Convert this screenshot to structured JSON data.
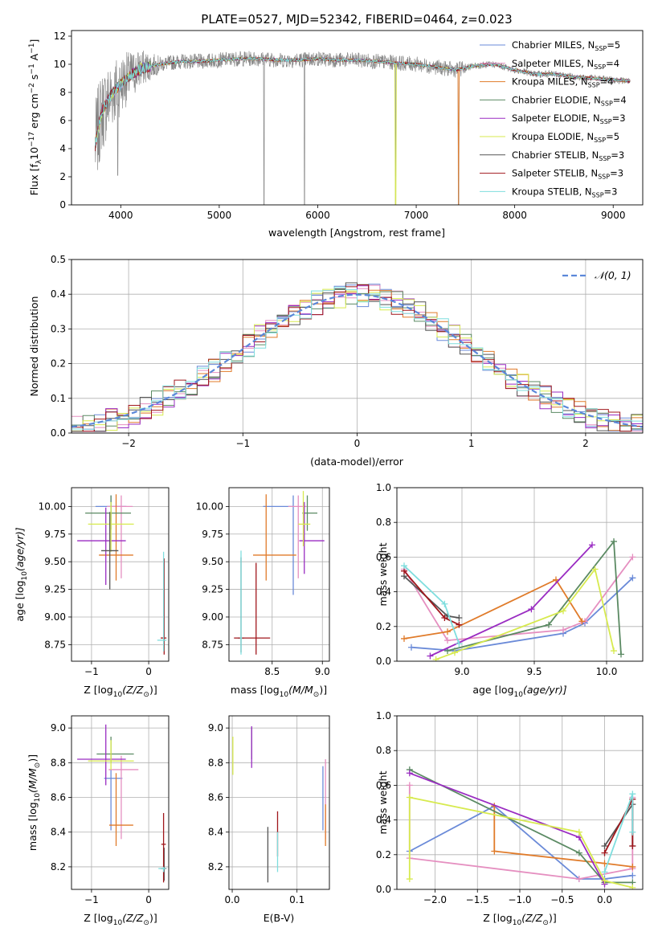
{
  "figure": {
    "title": "PLATE=0527, MJD=52342, FIBERID=0464, z=0.023"
  },
  "series": [
    {
      "name": "Chabrier MILES",
      "nssp": "5",
      "color": "#6a8ad8"
    },
    {
      "name": "Salpeter MILES",
      "nssp": "4",
      "color": "#e58fc0"
    },
    {
      "name": "Kroupa MILES",
      "nssp": "4",
      "color": "#e07b2a"
    },
    {
      "name": "Chabrier ELODIE",
      "nssp": "4",
      "color": "#5b8a63"
    },
    {
      "name": "Salpeter ELODIE",
      "nssp": "3",
      "color": "#9a2cc2"
    },
    {
      "name": "Kroupa ELODIE",
      "nssp": "5",
      "color": "#d7ea4f"
    },
    {
      "name": "Chabrier STELIB",
      "nssp": "3",
      "color": "#555555"
    },
    {
      "name": "Salpeter STELIB",
      "nssp": "3",
      "color": "#a0171c"
    },
    {
      "name": "Kroupa STELIB",
      "nssp": "3",
      "color": "#7fdede"
    }
  ],
  "chart_data": [
    {
      "id": "spectrum",
      "type": "line",
      "xlabel": "wavelength [Angstrom, rest frame]",
      "xlim": [
        3500,
        9300
      ],
      "ylim": [
        0,
        12.4
      ],
      "xticks": [
        4000,
        5000,
        6000,
        7000,
        8000,
        9000
      ],
      "yticks": [
        0,
        2,
        4,
        6,
        8,
        10,
        12
      ],
      "ylabel_parts": [
        "Flux [f",
        "λ",
        "10",
        "−17",
        " erg cm",
        "−2",
        " s",
        "−1",
        " A",
        "−1",
        "]"
      ],
      "legend_prefix": "N",
      "legend_sub": "SSP",
      "data_color": "#888888",
      "continuum": {
        "x": [
          3740,
          3800,
          3900,
          4000,
          4100,
          4200,
          4400,
          4600,
          4800,
          5000,
          5200,
          5400,
          5600,
          5800,
          6000,
          6200,
          6400,
          6600,
          6800,
          7000,
          7200,
          7400,
          7600,
          7800,
          8000,
          8200,
          8400,
          8600,
          8800,
          9000,
          9170
        ],
        "y": [
          4.2,
          6.5,
          7.8,
          8.6,
          9.2,
          9.7,
          10.0,
          10.2,
          10.2,
          10.3,
          10.4,
          10.4,
          10.3,
          10.3,
          10.4,
          10.3,
          10.3,
          10.2,
          10.1,
          10.0,
          9.8,
          9.6,
          9.9,
          10.0,
          9.6,
          9.3,
          9.3,
          9.1,
          9.0,
          8.9,
          8.8
        ]
      },
      "dips": [
        {
          "x": 3970,
          "y": 2.1
        },
        {
          "x": 5455,
          "y": 0.0
        },
        {
          "x": 5865,
          "y": 0.0
        },
        {
          "x": 6790,
          "y": 0.0
        },
        {
          "x": 7430,
          "y": 0.0
        }
      ]
    },
    {
      "id": "residuals",
      "type": "step",
      "xlabel": "(data-model)/error",
      "ylabel": "Normed distribution",
      "xlim": [
        -2.5,
        2.5
      ],
      "ylim": [
        0,
        0.5
      ],
      "xticks": [
        -2,
        -1,
        0,
        1,
        2
      ],
      "yticks": [
        0.0,
        0.1,
        0.2,
        0.3,
        0.4,
        0.5
      ],
      "bin_width": 0.1,
      "legend_label": "𝒩(0, 1)",
      "reference_color": "#5b87d9"
    },
    {
      "id": "z-age",
      "type": "errorbar",
      "xlabel_parts": [
        "Z [log",
        "10",
        "(Z/Z",
        "⊙",
        ")]"
      ],
      "ylabel_parts": [
        "age  [log",
        "10",
        "(age/yr)]"
      ],
      "xlim": [
        -1.35,
        0.35
      ],
      "ylim": [
        8.6,
        10.17
      ],
      "xticks": [
        -1,
        0
      ],
      "yticks": [
        8.75,
        9.0,
        9.25,
        9.5,
        9.75,
        10.0
      ],
      "points": [
        {
          "x": -0.66,
          "y": 10.0,
          "xerr": [
            0.27,
            0.27
          ],
          "yerr": [
            0.13,
            0.1
          ]
        },
        {
          "x": -0.48,
          "y": 10.0,
          "xerr": [
            0.25,
            0.2
          ],
          "yerr": [
            0.65,
            0.1
          ]
        },
        {
          "x": -0.57,
          "y": 9.56,
          "xerr": [
            0.3,
            0.3
          ],
          "yerr": [
            0.23,
            0.55
          ]
        },
        {
          "x": -0.66,
          "y": 9.94,
          "xerr": [
            0.45,
            0.35
          ],
          "yerr": [
            0.15,
            0.16
          ]
        },
        {
          "x": -0.75,
          "y": 9.69,
          "xerr": [
            0.5,
            0.35
          ],
          "yerr": [
            0.4,
            0.3
          ]
        },
        {
          "x": -0.66,
          "y": 9.84,
          "xerr": [
            0.4,
            0.4
          ],
          "yerr": [
            0.25,
            0.2
          ]
        },
        {
          "x": -0.68,
          "y": 9.6,
          "xerr": [
            0.15,
            0.15
          ],
          "yerr": [
            0.35,
            0.35
          ]
        },
        {
          "x": 0.27,
          "y": 8.81,
          "xerr": [
            0.06,
            0.04
          ],
          "yerr": [
            0.15,
            0.72
          ]
        },
        {
          "x": 0.26,
          "y": 8.79,
          "xerr": [
            0.11,
            0.05
          ],
          "yerr": [
            0.1,
            0.8
          ]
        }
      ]
    },
    {
      "id": "mass-age",
      "type": "errorbar",
      "xlabel_parts": [
        "mass [log",
        "10",
        "(M/M",
        "⊙",
        ")]"
      ],
      "ylabel_parts": [],
      "xlim": [
        8.07,
        9.07
      ],
      "ylim": [
        8.6,
        10.17
      ],
      "xticks": [
        8.5,
        9.0
      ],
      "yticks": [
        8.75,
        9.0,
        9.25,
        9.5,
        9.75,
        10.0
      ],
      "points": [
        {
          "x": 8.71,
          "y": 10.0,
          "xerr": [
            0.3,
            0.0
          ],
          "yerr": [
            0.8,
            0.1
          ]
        },
        {
          "x": 8.76,
          "y": 10.0,
          "xerr": [
            0.1,
            0.08
          ],
          "yerr": [
            0.65,
            0.1
          ]
        },
        {
          "x": 8.44,
          "y": 9.56,
          "xerr": [
            0.13,
            0.3
          ],
          "yerr": [
            0.23,
            0.55
          ]
        },
        {
          "x": 8.85,
          "y": 9.94,
          "xerr": [
            0.05,
            0.1
          ],
          "yerr": [
            0.16,
            0.16
          ]
        },
        {
          "x": 8.82,
          "y": 9.69,
          "xerr": [
            0.05,
            0.2
          ],
          "yerr": [
            0.3,
            0.35
          ]
        },
        {
          "x": 8.81,
          "y": 9.84,
          "xerr": [
            0.05,
            0.07
          ],
          "yerr": [
            0.2,
            0.3
          ]
        },
        {
          "x": 8.19,
          "y": 8.81,
          "xerr": [
            0.03,
            0.03
          ],
          "yerr": [
            0.13,
            0.73
          ]
        },
        {
          "x": 8.34,
          "y": 8.81,
          "xerr": [
            0.22,
            0.14
          ],
          "yerr": [
            0.15,
            0.68
          ]
        },
        {
          "x": 8.19,
          "y": 8.81,
          "xerr": [
            0.01,
            0.01
          ],
          "yerr": [
            0.15,
            0.79
          ]
        }
      ]
    },
    {
      "id": "age-weight",
      "type": "line",
      "xlabel_parts": [
        "age  [log",
        "10",
        "(age/yr)]"
      ],
      "ylabel": "mass weight",
      "xlim": [
        8.55,
        10.25
      ],
      "ylim": [
        0,
        1.0
      ],
      "xticks": [
        8.5,
        9.0,
        9.5,
        10.0
      ],
      "yticks": [
        0.0,
        0.2,
        0.4,
        0.6,
        0.8,
        1.0
      ],
      "series": [
        {
          "x": [
            8.65,
            8.95,
            9.7,
            9.85,
            10.18
          ],
          "y": [
            0.08,
            0.06,
            0.16,
            0.22,
            0.48
          ]
        },
        {
          "x": [
            8.6,
            8.9,
            9.7,
            9.85,
            10.18
          ],
          "y": [
            0.53,
            0.12,
            0.18,
            0.23,
            0.6
          ]
        },
        {
          "x": [
            8.6,
            8.9,
            9.65,
            9.83
          ],
          "y": [
            0.13,
            0.17,
            0.47,
            0.23
          ]
        },
        {
          "x": [
            8.9,
            9.6,
            10.05,
            10.1
          ],
          "y": [
            0.06,
            0.21,
            0.69,
            0.04
          ]
        },
        {
          "x": [
            8.78,
            9.48,
            9.9
          ],
          "y": [
            0.03,
            0.3,
            0.67
          ]
        },
        {
          "x": [
            8.82,
            8.95,
            9.7,
            9.92,
            10.05
          ],
          "y": [
            0.01,
            0.05,
            0.29,
            0.53,
            0.06
          ]
        },
        {
          "x": [
            8.6,
            8.9,
            8.98
          ],
          "y": [
            0.49,
            0.26,
            0.25
          ]
        },
        {
          "x": [
            8.6,
            8.88,
            8.98
          ],
          "y": [
            0.52,
            0.25,
            0.21
          ]
        },
        {
          "x": [
            8.6,
            8.88,
            8.98
          ],
          "y": [
            0.55,
            0.33,
            0.1
          ]
        }
      ]
    },
    {
      "id": "z-mass",
      "type": "errorbar",
      "xlabel_parts": [
        "Z [log",
        "10",
        "(Z/Z",
        "⊙",
        ")]"
      ],
      "ylabel_parts": [
        "mass [log",
        "10",
        "(M/M",
        "⊙",
        ")]"
      ],
      "xlim": [
        -1.35,
        0.35
      ],
      "ylim": [
        8.07,
        9.07
      ],
      "xticks": [
        -1,
        0
      ],
      "yticks": [
        8.2,
        8.4,
        8.6,
        8.8,
        9.0
      ],
      "points": [
        {
          "x": -0.66,
          "y": 8.71,
          "xerr": [
            0.12,
            0.2
          ],
          "yerr": [
            0.3,
            0.05
          ]
        },
        {
          "x": -0.48,
          "y": 8.76,
          "xerr": [
            0.22,
            0.3
          ],
          "yerr": [
            0.4,
            0.08
          ]
        },
        {
          "x": -0.57,
          "y": 8.44,
          "xerr": [
            0.12,
            0.3
          ],
          "yerr": [
            0.12,
            0.3
          ]
        },
        {
          "x": -0.66,
          "y": 8.85,
          "xerr": [
            0.25,
            0.4
          ],
          "yerr": [
            0.05,
            0.1
          ]
        },
        {
          "x": -0.75,
          "y": 8.82,
          "xerr": [
            0.5,
            0.35
          ],
          "yerr": [
            0.15,
            0.2
          ]
        },
        {
          "x": -0.66,
          "y": 8.81,
          "xerr": [
            0.4,
            0.4
          ],
          "yerr": [
            0.05,
            0.12
          ]
        },
        {
          "x": 0.27,
          "y": 8.19,
          "xerr": [
            0.06,
            0.04
          ],
          "yerr": [
            0.07,
            0.12
          ]
        },
        {
          "x": 0.26,
          "y": 8.33,
          "xerr": [
            0.04,
            0.04
          ],
          "yerr": [
            0.22,
            0.18
          ]
        },
        {
          "x": 0.26,
          "y": 8.19,
          "xerr": [
            0.09,
            0.04
          ],
          "yerr": [
            0.02,
            0.01
          ]
        }
      ]
    },
    {
      "id": "ebv-mass",
      "type": "errorbar",
      "xlabel": "E(B-V)",
      "xlim": [
        -0.005,
        0.15
      ],
      "ylim": [
        8.07,
        9.07
      ],
      "xticks": [
        0.0,
        0.1
      ],
      "yticks": [
        8.2,
        8.4,
        8.6,
        8.8,
        9.0
      ],
      "points": [
        {
          "x": 0.14,
          "y": 8.71,
          "xerr": [
            0.0,
            0.0
          ],
          "yerr": [
            0.3,
            0.07
          ]
        },
        {
          "x": 0.144,
          "y": 8.76,
          "xerr": [
            0.0,
            0.0
          ],
          "yerr": [
            0.4,
            0.06
          ]
        },
        {
          "x": 0.144,
          "y": 8.44,
          "xerr": [
            0.0,
            0.0
          ],
          "yerr": [
            0.12,
            0.12
          ]
        },
        {
          "x": 0.03,
          "y": 8.87,
          "xerr": [
            0.0,
            0.0
          ],
          "yerr": [
            0.05,
            0.13
          ]
        },
        {
          "x": 0.03,
          "y": 8.82,
          "xerr": [
            0.0,
            0.0
          ],
          "yerr": [
            0.05,
            0.19
          ]
        },
        {
          "x": 0.001,
          "y": 8.83,
          "xerr": [
            0.0,
            0.0
          ],
          "yerr": [
            0.1,
            0.12
          ]
        },
        {
          "x": 0.055,
          "y": 8.19,
          "xerr": [
            0.0,
            0.0
          ],
          "yerr": [
            0.08,
            0.24
          ]
        },
        {
          "x": 0.07,
          "y": 8.33,
          "xerr": [
            0.0,
            0.0
          ],
          "yerr": [
            0.07,
            0.19
          ]
        },
        {
          "x": 0.07,
          "y": 8.2,
          "xerr": [
            0.0,
            0.0
          ],
          "yerr": [
            0.03,
            0.2
          ]
        }
      ]
    },
    {
      "id": "z-weight",
      "type": "line",
      "xlabel_parts": [
        "Z [log",
        "10",
        "(Z/Z",
        "⊙",
        ")]"
      ],
      "ylabel": "mass weight",
      "xlim": [
        -2.45,
        0.45
      ],
      "ylim": [
        0,
        1.0
      ],
      "xticks": [
        -2.0,
        -1.5,
        -1.0,
        -0.5,
        0.0
      ],
      "yticks": [
        0.0,
        0.2,
        0.4,
        0.6,
        0.8,
        1.0
      ],
      "series": [
        {
          "x": [
            -2.3,
            -1.3,
            -0.3,
            0.0,
            0.33
          ],
          "y": [
            0.22,
            0.48,
            0.06,
            0.06,
            0.08
          ]
        },
        {
          "x": [
            -2.3,
            -2.3,
            -0.3,
            0.33,
            0.33
          ],
          "y": [
            0.6,
            0.18,
            0.06,
            0.12,
            0.53
          ]
        },
        {
          "x": [
            -1.3,
            -1.3,
            0.0,
            0.33
          ],
          "y": [
            0.48,
            0.22,
            0.15,
            0.13
          ]
        },
        {
          "x": [
            -2.3,
            -0.3,
            0.0,
            0.33
          ],
          "y": [
            0.69,
            0.21,
            0.04,
            0.04
          ]
        },
        {
          "x": [
            -2.3,
            -0.3,
            0.0
          ],
          "y": [
            0.67,
            0.3,
            0.03
          ]
        },
        {
          "x": [
            -2.3,
            -2.3,
            -0.3,
            0.0,
            0.33
          ],
          "y": [
            0.06,
            0.53,
            0.33,
            0.05,
            0.01
          ]
        },
        {
          "x": [
            0.0,
            0.33,
            0.33
          ],
          "y": [
            0.25,
            0.49,
            0.25
          ]
        },
        {
          "x": [
            0.0,
            0.33,
            0.33
          ],
          "y": [
            0.21,
            0.52,
            0.25
          ]
        },
        {
          "x": [
            0.0,
            0.33,
            0.33
          ],
          "y": [
            0.1,
            0.55,
            0.33
          ]
        }
      ]
    }
  ]
}
